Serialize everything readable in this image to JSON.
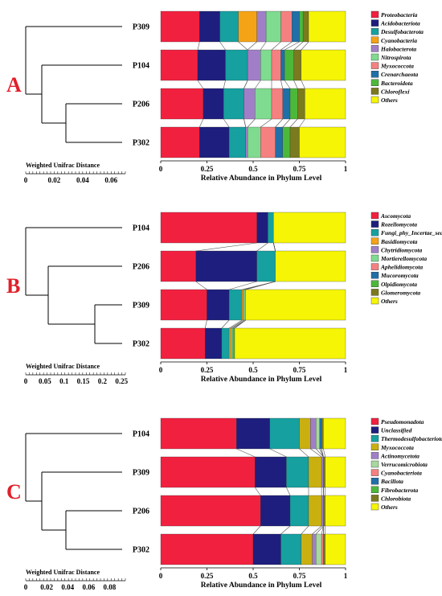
{
  "chart_data": [
    {
      "type": "bar",
      "panel": "A",
      "samples": [
        "P309",
        "P104",
        "P206",
        "P302"
      ],
      "xlabel": "Relative Abundance in Phylum Level",
      "xlim": [
        0,
        1
      ],
      "xticks": [
        "0",
        "0.25",
        "0.5",
        "0.75",
        "1"
      ],
      "scale_bar": {
        "title": "Weighted Unifrac Distance",
        "ticks": [
          "0",
          "0.02",
          "0.04",
          "0.06"
        ],
        "max": 0.07
      },
      "series": [
        {
          "name": "Proteobacteria",
          "color": "#f2203f",
          "values": [
            0.21,
            0.2,
            0.23,
            0.21
          ]
        },
        {
          "name": "Acidobacteriota",
          "color": "#1e1e7e",
          "values": [
            0.11,
            0.15,
            0.11,
            0.16
          ]
        },
        {
          "name": "Desulfobacterota",
          "color": "#16a0a0",
          "values": [
            0.1,
            0.12,
            0.11,
            0.09
          ]
        },
        {
          "name": "Cyanobacteria",
          "color": "#f5a316",
          "values": [
            0.1,
            0.0,
            0.0,
            0.0
          ]
        },
        {
          "name": "Halobacterota",
          "color": "#a07fc8",
          "values": [
            0.05,
            0.07,
            0.06,
            0.01
          ]
        },
        {
          "name": "Nitrospirota",
          "color": "#7fdb8f",
          "values": [
            0.08,
            0.06,
            0.09,
            0.07
          ]
        },
        {
          "name": "Myxococcota",
          "color": "#f58080",
          "values": [
            0.06,
            0.05,
            0.06,
            0.08
          ]
        },
        {
          "name": "Crenarchaeota",
          "color": "#1f6fa8",
          "values": [
            0.04,
            0.02,
            0.04,
            0.04
          ]
        },
        {
          "name": "Bacteroidota",
          "color": "#4cb83a",
          "values": [
            0.02,
            0.05,
            0.04,
            0.04
          ]
        },
        {
          "name": "Chloroflexi",
          "color": "#7a7a1e",
          "values": [
            0.03,
            0.04,
            0.04,
            0.05
          ]
        },
        {
          "name": "Others",
          "color": "#f5f505",
          "values": [
            0.2,
            0.24,
            0.22,
            0.25
          ]
        }
      ]
    },
    {
      "type": "bar",
      "panel": "B",
      "samples": [
        "P104",
        "P206",
        "P309",
        "P302"
      ],
      "xlabel": "Relative Abundance in Phylum Level",
      "xlim": [
        0,
        1
      ],
      "xticks": [
        "0",
        "0.25",
        "0.5",
        "0.75",
        "1"
      ],
      "scale_bar": {
        "title": "Weighted Unifrac Distance",
        "ticks": [
          "0",
          "0.05",
          "0.1",
          "0.15",
          "0.2",
          "0.25"
        ],
        "max": 0.26
      },
      "series": [
        {
          "name": "Ascomycota",
          "color": "#f2203f",
          "values": [
            0.52,
            0.19,
            0.25,
            0.24
          ]
        },
        {
          "name": "Rozellomycota",
          "color": "#1e1e7e",
          "values": [
            0.06,
            0.33,
            0.12,
            0.09
          ]
        },
        {
          "name": "Fungi_phy_Incertae_sedis",
          "color": "#16a0a0",
          "values": [
            0.03,
            0.1,
            0.07,
            0.04
          ]
        },
        {
          "name": "Basidiomycota",
          "color": "#f5a316",
          "values": [
            0.0,
            0.0,
            0.01,
            0.01
          ]
        },
        {
          "name": "Chytridiomycota",
          "color": "#a07fc8",
          "values": [
            0.0,
            0.0,
            0.0,
            0.0
          ]
        },
        {
          "name": "Mortierellomycota",
          "color": "#7fdb8f",
          "values": [
            0.0,
            0.0,
            0.01,
            0.01
          ]
        },
        {
          "name": "Aphelidiomycota",
          "color": "#f58080",
          "values": [
            0.0,
            0.0,
            0.0,
            0.0
          ]
        },
        {
          "name": "Mucoromycota",
          "color": "#1f6fa8",
          "values": [
            0.0,
            0.0,
            0.0,
            0.0
          ]
        },
        {
          "name": "Olpidiomycota",
          "color": "#4cb83a",
          "values": [
            0.0,
            0.0,
            0.0,
            0.01
          ]
        },
        {
          "name": "Glomeromycota",
          "color": "#7a7a1e",
          "values": [
            0.0,
            0.0,
            0.0,
            0.0
          ]
        },
        {
          "name": "Others",
          "color": "#f5f505",
          "values": [
            0.39,
            0.38,
            0.54,
            0.6
          ]
        }
      ]
    },
    {
      "type": "bar",
      "panel": "C",
      "samples": [
        "P104",
        "P309",
        "P206",
        "P302"
      ],
      "xlabel": "Relative Abundance in Phylum Level",
      "xlim": [
        0,
        1
      ],
      "xticks": [
        "0",
        "0.25",
        "0.5",
        "0.75",
        "1"
      ],
      "scale_bar": {
        "title": "Weighted Unifrac Distance",
        "ticks": [
          "0",
          "0.02",
          "0.04",
          "0.06",
          "0.08"
        ],
        "max": 0.095
      },
      "series": [
        {
          "name": "Pseudomonadota",
          "color": "#f2203f",
          "values": [
            0.41,
            0.51,
            0.54,
            0.5
          ]
        },
        {
          "name": "Unclassified",
          "color": "#1e1e7e",
          "values": [
            0.18,
            0.17,
            0.16,
            0.15
          ]
        },
        {
          "name": "Thermodesulfobacteriota",
          "color": "#16a0a0",
          "values": [
            0.16,
            0.12,
            0.1,
            0.11
          ]
        },
        {
          "name": "Myxococcota",
          "color": "#c9b010",
          "values": [
            0.06,
            0.07,
            0.07,
            0.06
          ]
        },
        {
          "name": "Actinomycetota",
          "color": "#a07fc8",
          "values": [
            0.03,
            0.01,
            0.01,
            0.02
          ]
        },
        {
          "name": "Verrucomicrobiota",
          "color": "#a8d8a0",
          "values": [
            0.02,
            0.0,
            0.0,
            0.03
          ]
        },
        {
          "name": "Cyanobacteriota",
          "color": "#f58080",
          "values": [
            0.0,
            0.0,
            0.0,
            0.01
          ]
        },
        {
          "name": "Bacillota",
          "color": "#1f6fa8",
          "values": [
            0.01,
            0.0,
            0.0,
            0.0
          ]
        },
        {
          "name": "Fibrobacterota",
          "color": "#4cb83a",
          "values": [
            0.0,
            0.0,
            0.0,
            0.0
          ]
        },
        {
          "name": "Chlorobiota",
          "color": "#7a7a1e",
          "values": [
            0.01,
            0.01,
            0.01,
            0.01
          ]
        },
        {
          "name": "Others",
          "color": "#f5f505",
          "values": [
            0.12,
            0.11,
            0.11,
            0.11
          ]
        }
      ]
    }
  ]
}
